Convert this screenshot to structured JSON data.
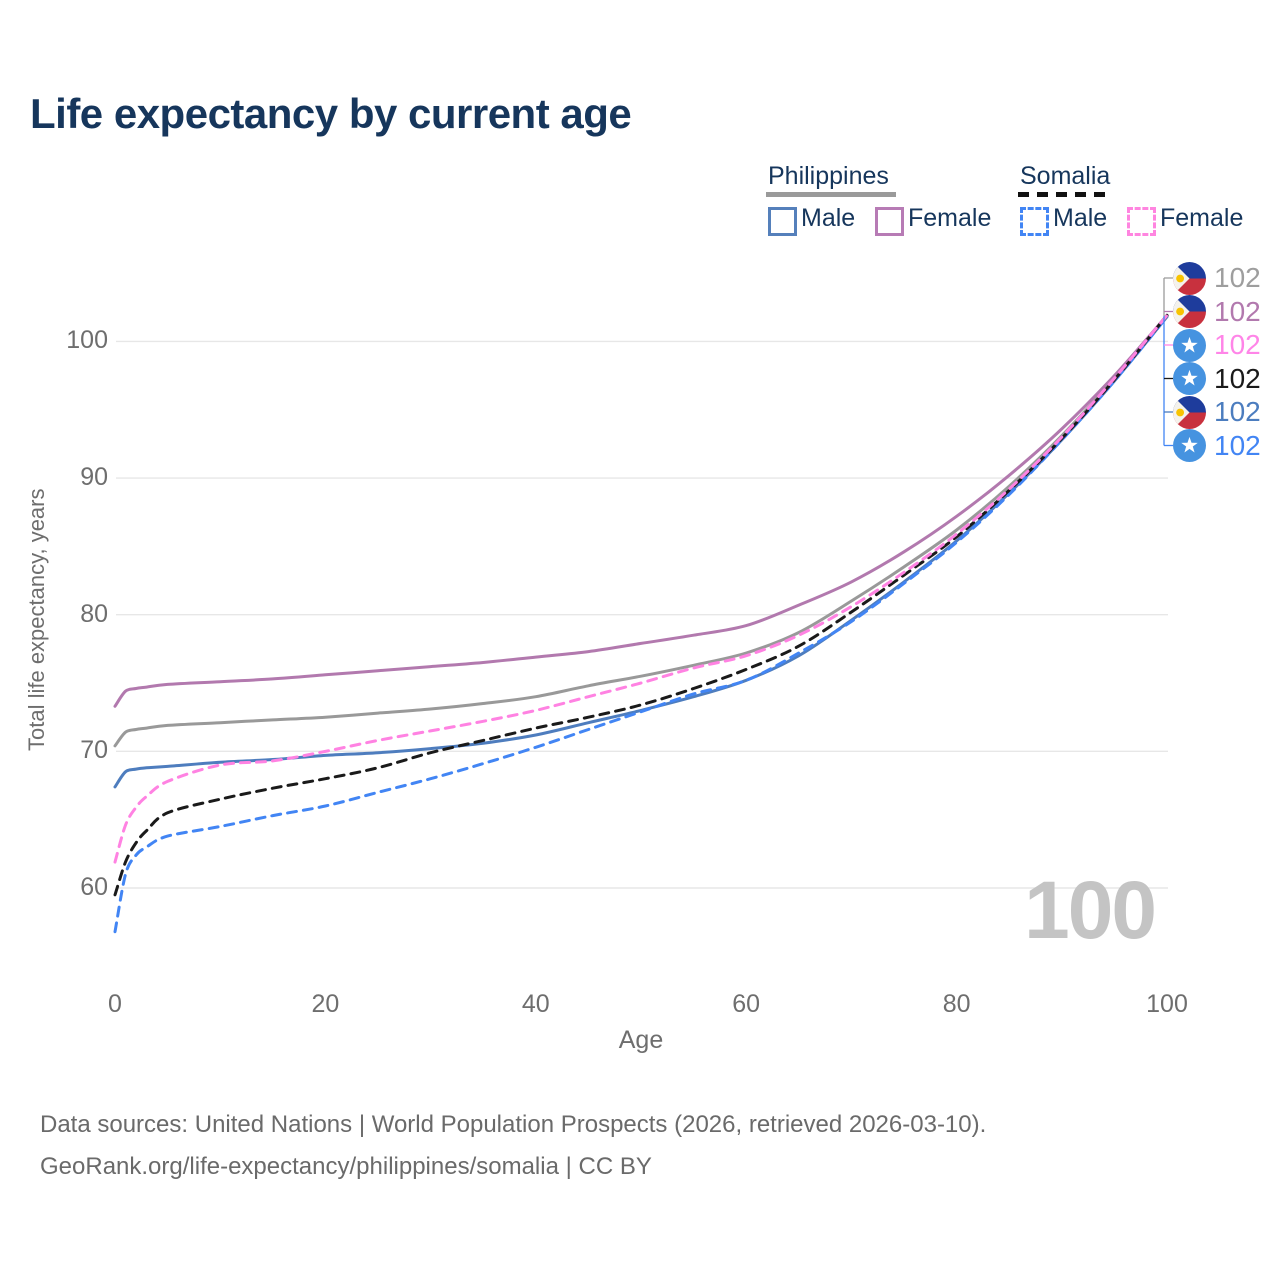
{
  "header": {
    "title": "Life expectancy by current age"
  },
  "legend": {
    "philippines": {
      "label": "Philippines",
      "male": "Male",
      "female": "Female"
    },
    "somalia": {
      "label": "Somalia",
      "male": "Male",
      "female": "Female"
    }
  },
  "axes": {
    "y_title": "Total life expectancy, years",
    "x_title": "Age",
    "y_ticks": [
      60,
      70,
      80,
      90,
      100
    ],
    "x_ticks": [
      0,
      20,
      40,
      60,
      80,
      100
    ]
  },
  "watermark": {
    "value": "100"
  },
  "end_labels": [
    {
      "value": "102",
      "flag": "philippines-flag-icon",
      "color": "#9e9e9e",
      "series": "Philippines"
    },
    {
      "value": "102",
      "flag": "philippines-flag-icon",
      "color": "#b279ae",
      "series": "Philippines Female"
    },
    {
      "value": "102",
      "flag": "somalia-flag-icon",
      "color": "#ff85e8",
      "series": "Somalia Female"
    },
    {
      "value": "102",
      "flag": "somalia-flag-icon",
      "color": "#1a1a1a",
      "series": "Somalia"
    },
    {
      "value": "102",
      "flag": "philippines-flag-icon",
      "color": "#4c7dbf",
      "series": "Philippines Male"
    },
    {
      "value": "102",
      "flag": "somalia-flag-icon",
      "color": "#4285f4",
      "series": "Somalia Male"
    }
  ],
  "footer": {
    "line1": "Data sources: United Nations | World Population Prospects (2026, retrieved 2026-03-10).",
    "line2": "GeoRank.org/life-expectancy/philippines/somalia | CC BY"
  },
  "chart_data": {
    "type": "line",
    "title": "Life expectancy by current age",
    "xlabel": "Age",
    "ylabel": "Total life expectancy, years",
    "xlim": [
      0,
      100
    ],
    "ylim": [
      55,
      103
    ],
    "grid": "horizontal",
    "legend_position": "top-right",
    "x": [
      0,
      1,
      2,
      3,
      5,
      10,
      15,
      20,
      25,
      30,
      35,
      40,
      45,
      50,
      55,
      60,
      65,
      70,
      75,
      80,
      85,
      90,
      95,
      100
    ],
    "series": [
      {
        "name": "Philippines",
        "country": "Philippines",
        "sex": "Both",
        "color": "#999999",
        "dash": false,
        "values": [
          70.4,
          71.4,
          71.6,
          71.7,
          71.9,
          72.1,
          72.3,
          72.5,
          72.8,
          73.1,
          73.5,
          74.0,
          74.8,
          75.5,
          76.3,
          77.2,
          78.7,
          81.0,
          83.5,
          86.2,
          89.4,
          93.1,
          97.3,
          101.9
        ]
      },
      {
        "name": "Philippines Female",
        "country": "Philippines",
        "sex": "Female",
        "color": "#b279ae",
        "dash": false,
        "values": [
          73.3,
          74.4,
          74.6,
          74.7,
          74.9,
          75.1,
          75.3,
          75.6,
          75.9,
          76.2,
          76.5,
          76.9,
          77.3,
          77.9,
          78.5,
          79.2,
          80.7,
          82.4,
          84.6,
          87.2,
          90.2,
          93.6,
          97.5,
          101.9
        ]
      },
      {
        "name": "Philippines Male",
        "country": "Philippines",
        "sex": "Male",
        "color": "#4e7dbe",
        "dash": false,
        "values": [
          67.4,
          68.5,
          68.7,
          68.8,
          68.9,
          69.2,
          69.4,
          69.7,
          69.9,
          70.2,
          70.6,
          71.2,
          72.1,
          73.0,
          74.0,
          75.2,
          77.0,
          79.6,
          82.4,
          85.4,
          88.9,
          92.8,
          97.1,
          101.8
        ]
      },
      {
        "name": "Somalia Male",
        "country": "Somalia",
        "sex": "Male",
        "color": "#4285f4",
        "dash": true,
        "values": [
          56.8,
          61.0,
          62.4,
          63.0,
          63.8,
          64.5,
          65.3,
          66.0,
          67.0,
          68.0,
          69.1,
          70.3,
          71.6,
          72.9,
          74.2,
          75.2,
          77.2,
          79.5,
          82.3,
          85.3,
          88.8,
          92.8,
          97.1,
          101.8
        ]
      },
      {
        "name": "Somalia",
        "country": "Somalia",
        "sex": "Both",
        "color": "#1a1a1a",
        "dash": true,
        "values": [
          59.5,
          61.9,
          63.3,
          64.2,
          65.5,
          66.5,
          67.3,
          68.0,
          68.8,
          69.9,
          70.8,
          71.7,
          72.5,
          73.4,
          74.6,
          76.0,
          77.7,
          80.2,
          82.9,
          85.7,
          89.1,
          92.9,
          97.2,
          101.9
        ]
      },
      {
        "name": "Somalia Female",
        "country": "Somalia",
        "sex": "Female",
        "color": "#ff82e2",
        "dash": true,
        "values": [
          61.9,
          64.6,
          65.9,
          66.7,
          67.8,
          69.0,
          69.3,
          70.0,
          70.8,
          71.5,
          72.2,
          73.0,
          74.0,
          75.0,
          76.1,
          77.0,
          78.5,
          80.6,
          83.1,
          85.9,
          89.2,
          93.0,
          97.3,
          101.9
        ]
      }
    ]
  }
}
